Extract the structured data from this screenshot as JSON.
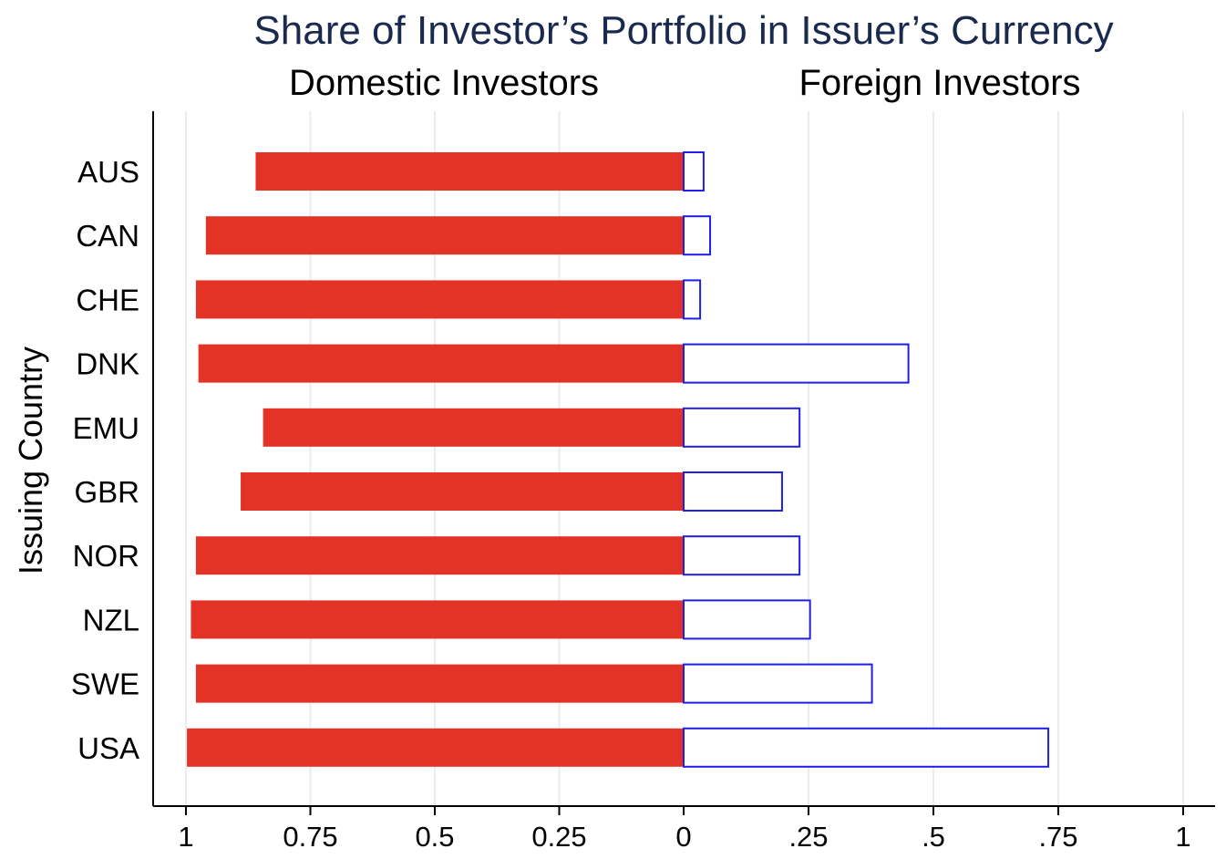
{
  "chart_data": {
    "type": "bar",
    "orientation": "horizontal-butterfly",
    "title": "Share of Investor’s Portfolio in Issuer’s Currency",
    "panel_titles": {
      "left": "Domestic Investors",
      "right": "Foreign Investors"
    },
    "ylabel": "Issuing Country",
    "categories": [
      "AUS",
      "CAN",
      "CHE",
      "DNK",
      "EMU",
      "GBR",
      "NOR",
      "NZL",
      "SWE",
      "USA"
    ],
    "series": [
      {
        "name": "Domestic Investors",
        "side": "left",
        "style": "filled",
        "color": "#e33226",
        "values": [
          0.86,
          0.96,
          0.98,
          0.975,
          0.845,
          0.89,
          0.98,
          0.99,
          0.98,
          0.998
        ]
      },
      {
        "name": "Foreign Investors",
        "side": "right",
        "style": "outline",
        "color": "#1f1fe6",
        "values": [
          0.04,
          0.053,
          0.033,
          0.45,
          0.232,
          0.197,
          0.232,
          0.253,
          0.377,
          0.73
        ]
      }
    ],
    "xlim_left": [
      0,
      1
    ],
    "xlim_right": [
      0,
      1
    ],
    "x_ticks_left": [
      "1",
      "0.75",
      "0.5",
      "0.25",
      "0"
    ],
    "x_ticks_right": [
      ".25",
      ".5",
      ".75",
      "1"
    ],
    "grid": "vertical",
    "gridline_color": "#e6eef2",
    "title_color": "#1a2a4f"
  }
}
